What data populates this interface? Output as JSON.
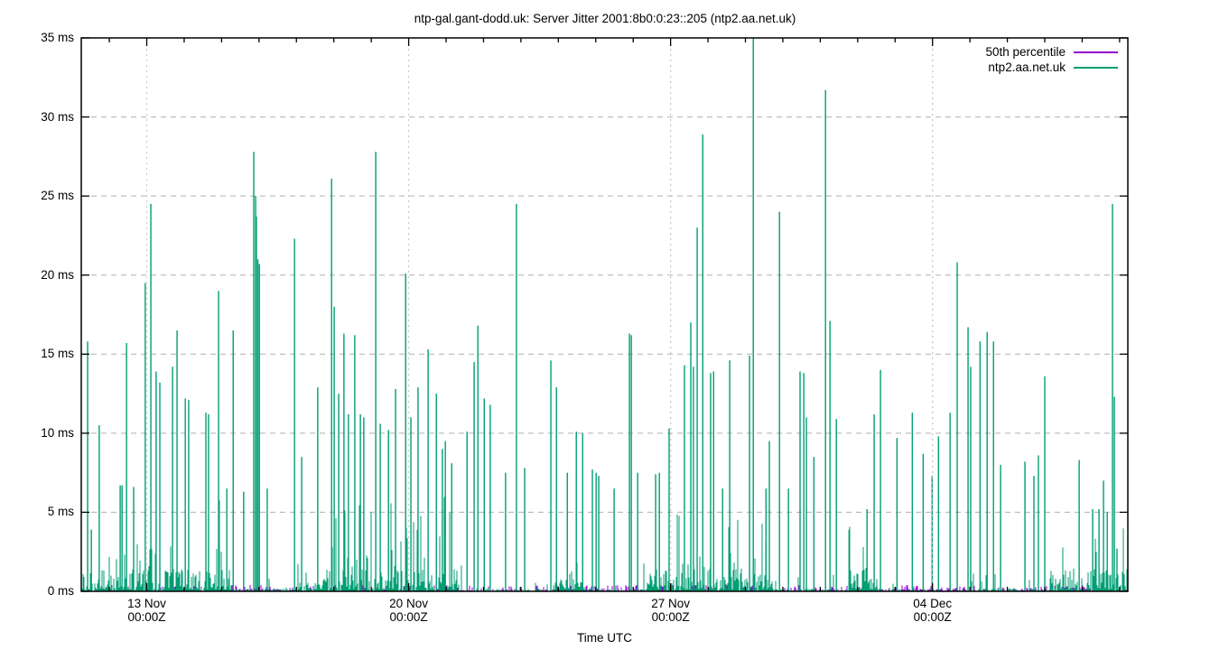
{
  "chart_data": {
    "type": "impulse-time-series",
    "title": "ntp-gal.gant-dodd.uk: Server Jitter 2001:8b0:0:23::205 (ntp2.aa.net.uk)",
    "xlabel": "Time UTC",
    "background_color": "#ffffff",
    "grid": {
      "h_style": "dashed",
      "v_style": "dotted",
      "color": "#b0b0b0",
      "front_v_color": "#c9c9c9"
    },
    "y_axis": {
      "unit": "ms",
      "min": 0,
      "max": 35,
      "tick_step": 5,
      "tick_labels": [
        "0 ms",
        "5 ms",
        "10 ms",
        "15 ms",
        "20 ms",
        "25 ms",
        "30 ms",
        "35 ms"
      ]
    },
    "x_axis": {
      "span_days": 27.97,
      "minor_tick_every_days": 1,
      "first_minor_tick_day": 0.75,
      "ticks": [
        {
          "day": 1.75,
          "date": "13 Nov",
          "time": "00:00Z"
        },
        {
          "day": 8.75,
          "date": "20 Nov",
          "time": "00:00Z"
        },
        {
          "day": 15.75,
          "date": "27 Nov",
          "time": "00:00Z"
        },
        {
          "day": 22.75,
          "date": "04 Dec",
          "time": "00:00Z"
        }
      ]
    },
    "legend": {
      "position": "top-right",
      "entries": [
        {
          "label": "50th percentile",
          "color": "#9400d3"
        },
        {
          "label": "ntp2.aa.net.uk",
          "color": "#009e73"
        }
      ]
    },
    "series": [
      {
        "name": "50th percentile",
        "color": "#9400d3",
        "style": "impulses",
        "description": "flat near zero, 0.05-0.4 ms, visible as tiny marks along the baseline",
        "baseline_max_ms": 0.4
      },
      {
        "name": "ntp2.aa.net.uk",
        "color": "#009e73",
        "style": "impulses",
        "spikes_day_ms": [
          [
            0.17,
            15.8
          ],
          [
            0.27,
            3.9
          ],
          [
            0.48,
            10.5
          ],
          [
            1.04,
            6.7
          ],
          [
            1.09,
            6.7
          ],
          [
            1.21,
            15.7
          ],
          [
            1.4,
            6.6
          ],
          [
            1.71,
            19.5
          ],
          [
            1.86,
            24.5
          ],
          [
            2.0,
            13.9
          ],
          [
            2.1,
            13.2
          ],
          [
            2.44,
            14.2
          ],
          [
            2.56,
            16.5
          ],
          [
            2.78,
            12.2
          ],
          [
            2.87,
            12.1
          ],
          [
            3.33,
            11.3
          ],
          [
            3.4,
            11.2
          ],
          [
            3.67,
            19.0
          ],
          [
            3.89,
            6.5
          ],
          [
            4.06,
            16.5
          ],
          [
            4.34,
            6.3
          ],
          [
            4.61,
            27.8
          ],
          [
            4.66,
            25.0
          ],
          [
            4.68,
            23.7
          ],
          [
            4.72,
            21.0
          ],
          [
            4.76,
            20.7
          ],
          [
            4.97,
            6.5
          ],
          [
            5.7,
            22.3
          ],
          [
            5.89,
            8.5
          ],
          [
            6.32,
            12.9
          ],
          [
            6.69,
            26.1
          ],
          [
            6.76,
            18.0
          ],
          [
            6.88,
            12.5
          ],
          [
            7.02,
            16.3
          ],
          [
            7.14,
            11.2
          ],
          [
            7.31,
            16.2
          ],
          [
            7.46,
            11.2
          ],
          [
            7.55,
            11.0
          ],
          [
            7.87,
            27.8
          ],
          [
            7.99,
            10.6
          ],
          [
            8.21,
            10.2
          ],
          [
            8.4,
            12.8
          ],
          [
            8.67,
            20.1
          ],
          [
            8.81,
            11.0
          ],
          [
            9.0,
            12.9
          ],
          [
            9.27,
            15.3
          ],
          [
            9.49,
            12.5
          ],
          [
            9.65,
            9.0
          ],
          [
            9.73,
            9.5
          ],
          [
            9.9,
            8.1
          ],
          [
            10.31,
            10.1
          ],
          [
            10.5,
            14.5
          ],
          [
            10.6,
            16.8
          ],
          [
            10.77,
            12.2
          ],
          [
            10.93,
            11.8
          ],
          [
            11.34,
            7.5
          ],
          [
            11.63,
            24.5
          ],
          [
            11.85,
            7.8
          ],
          [
            12.55,
            14.6
          ],
          [
            12.7,
            12.9
          ],
          [
            12.99,
            7.5
          ],
          [
            13.23,
            10.1
          ],
          [
            13.4,
            10.0
          ],
          [
            13.66,
            7.7
          ],
          [
            13.76,
            7.5
          ],
          [
            13.83,
            7.3
          ],
          [
            14.24,
            6.5
          ],
          [
            14.65,
            16.3
          ],
          [
            14.7,
            16.2
          ],
          [
            14.87,
            7.5
          ],
          [
            15.35,
            7.4
          ],
          [
            15.45,
            7.5
          ],
          [
            15.71,
            10.3
          ],
          [
            16.12,
            14.3
          ],
          [
            16.29,
            17.0
          ],
          [
            16.36,
            14.2
          ],
          [
            16.46,
            23.0
          ],
          [
            16.61,
            28.9
          ],
          [
            16.82,
            13.8
          ],
          [
            16.9,
            13.9
          ],
          [
            17.14,
            6.5
          ],
          [
            17.33,
            14.6
          ],
          [
            17.86,
            14.9
          ],
          [
            17.96,
            35.0
          ],
          [
            18.3,
            6.5
          ],
          [
            18.39,
            9.5
          ],
          [
            18.66,
            24.0
          ],
          [
            18.9,
            6.5
          ],
          [
            19.21,
            13.9
          ],
          [
            19.31,
            13.8
          ],
          [
            19.38,
            11.0
          ],
          [
            19.58,
            8.5
          ],
          [
            19.89,
            31.7
          ],
          [
            20.01,
            17.1
          ],
          [
            20.18,
            10.9
          ],
          [
            20.52,
            3.9
          ],
          [
            21.0,
            5.2
          ],
          [
            21.19,
            11.2
          ],
          [
            21.36,
            14.0
          ],
          [
            21.8,
            9.7
          ],
          [
            22.21,
            11.3
          ],
          [
            22.5,
            8.7
          ],
          [
            22.74,
            7.3
          ],
          [
            22.91,
            9.8
          ],
          [
            23.22,
            11.3
          ],
          [
            23.41,
            20.8
          ],
          [
            23.7,
            16.7
          ],
          [
            23.77,
            14.2
          ],
          [
            24.02,
            15.8
          ],
          [
            24.21,
            16.4
          ],
          [
            24.38,
            15.8
          ],
          [
            24.57,
            8.0
          ],
          [
            25.22,
            8.2
          ],
          [
            25.46,
            7.3
          ],
          [
            25.58,
            8.6
          ],
          [
            25.75,
            13.6
          ],
          [
            26.67,
            8.3
          ],
          [
            27.03,
            5.2
          ],
          [
            27.2,
            5.2
          ],
          [
            27.32,
            7.0
          ],
          [
            27.42,
            5.0
          ],
          [
            27.56,
            24.5
          ],
          [
            27.61,
            12.3
          ],
          [
            27.68,
            2.7
          ]
        ],
        "background_noise": {
          "seed": 1337,
          "per_day_envelope_ms": [
            4.0,
            6.5,
            5.5,
            5.5,
            6.0,
            4.5,
            6.0,
            5.5,
            6.0,
            7.0,
            6.0,
            5.5,
            5.0,
            4.0,
            6.0,
            6.0,
            6.0,
            5.0,
            5.5,
            5.5,
            4.0,
            5.0,
            6.0,
            6.0,
            5.5,
            4.0,
            2.5,
            4.5
          ],
          "description": "dense 0-7 ms impulses at near-pixel spacing with intermittent quiet gaps"
        }
      }
    ]
  }
}
